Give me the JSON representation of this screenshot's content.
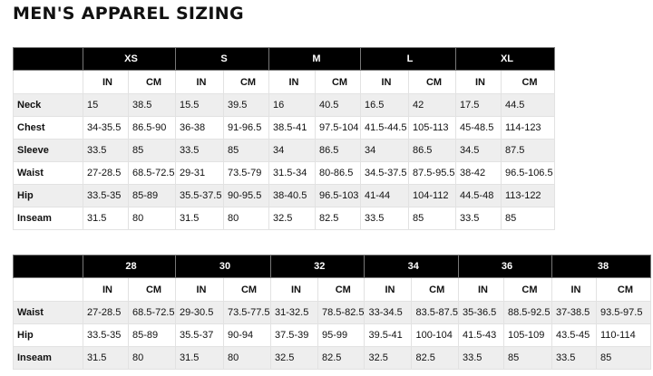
{
  "title": "MEN'S APPAREL SIZING",
  "tables": [
    {
      "sizes": [
        "XS",
        "S",
        "M",
        "L",
        "XL"
      ],
      "units": [
        "IN",
        "CM"
      ],
      "rows": [
        {
          "label": "Neck",
          "values": [
            "15",
            "38.5",
            "15.5",
            "39.5",
            "16",
            "40.5",
            "16.5",
            "42",
            "17.5",
            "44.5"
          ]
        },
        {
          "label": "Chest",
          "values": [
            "34-35.5",
            "86.5-90",
            "36-38",
            "91-96.5",
            "38.5-41",
            "97.5-104",
            "41.5-44.5",
            "105-113",
            "45-48.5",
            "114-123"
          ]
        },
        {
          "label": "Sleeve",
          "values": [
            "33.5",
            "85",
            "33.5",
            "85",
            "34",
            "86.5",
            "34",
            "86.5",
            "34.5",
            "87.5"
          ]
        },
        {
          "label": "Waist",
          "values": [
            "27-28.5",
            "68.5-72.5",
            "29-31",
            "73.5-79",
            "31.5-34",
            "80-86.5",
            "34.5-37.5",
            "87.5-95.5",
            "38-42",
            "96.5-106.5"
          ]
        },
        {
          "label": "Hip",
          "values": [
            "33.5-35",
            "85-89",
            "35.5-37.5",
            "90-95.5",
            "38-40.5",
            "96.5-103",
            "41-44",
            "104-112",
            "44.5-48",
            "113-122"
          ]
        },
        {
          "label": "Inseam",
          "values": [
            "31.5",
            "80",
            "31.5",
            "80",
            "32.5",
            "82.5",
            "33.5",
            "85",
            "33.5",
            "85"
          ]
        }
      ]
    },
    {
      "sizes": [
        "28",
        "30",
        "32",
        "34",
        "36",
        "38"
      ],
      "units": [
        "IN",
        "CM"
      ],
      "rows": [
        {
          "label": "Waist",
          "values": [
            "27-28.5",
            "68.5-72.5",
            "29-30.5",
            "73.5-77.5",
            "31-32.5",
            "78.5-82.5",
            "33-34.5",
            "83.5-87.5",
            "35-36.5",
            "88.5-92.5",
            "37-38.5",
            "93.5-97.5"
          ]
        },
        {
          "label": "Hip",
          "values": [
            "33.5-35",
            "85-89",
            "35.5-37",
            "90-94",
            "37.5-39",
            "95-99",
            "39.5-41",
            "100-104",
            "41.5-43",
            "105-109",
            "43.5-45",
            "110-114"
          ]
        },
        {
          "label": "Inseam",
          "values": [
            "31.5",
            "80",
            "31.5",
            "80",
            "32.5",
            "82.5",
            "32.5",
            "82.5",
            "33.5",
            "85",
            "33.5",
            "85"
          ]
        }
      ]
    }
  ]
}
